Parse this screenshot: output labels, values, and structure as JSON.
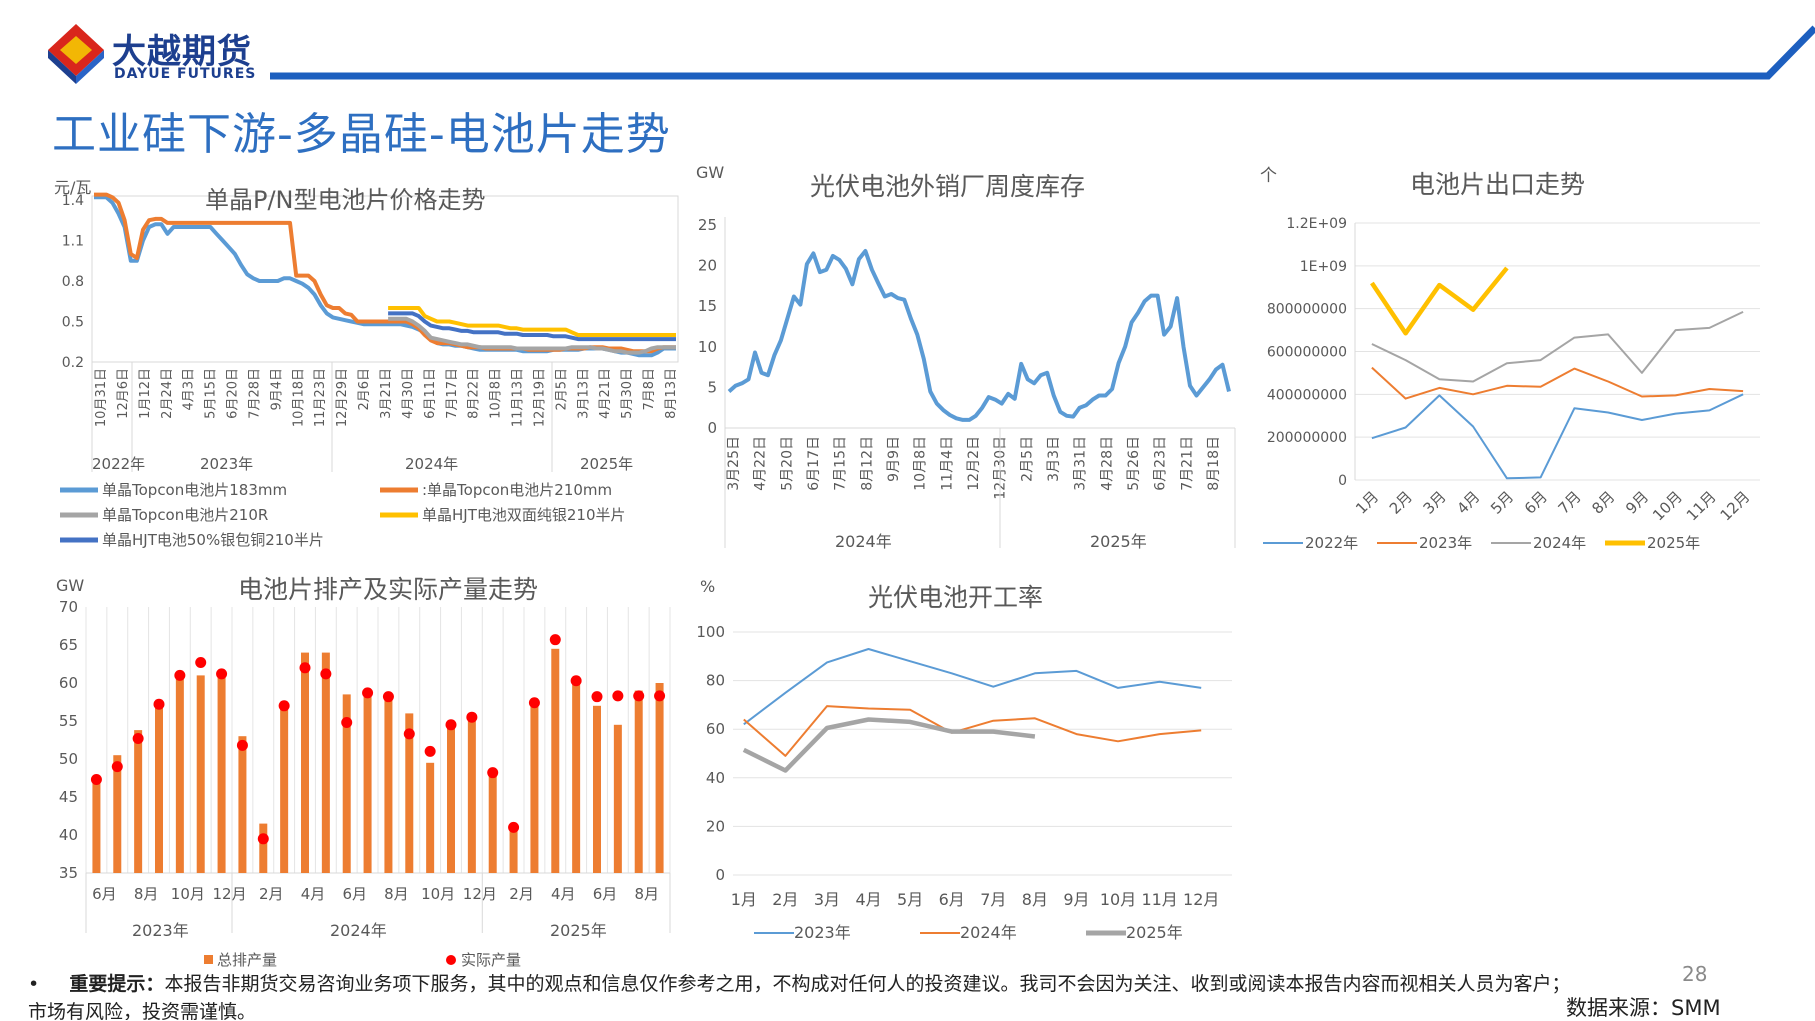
{
  "header": {
    "logo_cn": "大越期货",
    "logo_en": "DAYUE FUTURES",
    "title": "工业硅下游-多晶硅-电池片走势"
  },
  "footer": {
    "disclaimer_label": "重要提示：",
    "disclaimer_text": "本报告非期货交易咨询业务项下服务，其中的观点和信息仅作参考之用，不构成对任何人的投资建议。我司不会因为关注、收到或阅读本报告内容而视相关人员为客户；市场有风险，投资需谨慎。",
    "bullet": "•",
    "page_number": "28",
    "source": "数据来源：SMM"
  },
  "colors": {
    "blue": "#5b9bd5",
    "orange": "#ed7d31",
    "gray": "#a5a5a5",
    "yellow": "#ffc000",
    "navy": "#4472c4",
    "red": "#ff0000",
    "brand": "#1d5fbf"
  },
  "chart_data": [
    {
      "id": "price",
      "type": "line",
      "title": "单晶P/N型电池片价格走势",
      "ylabel": "元/瓦",
      "ylim": [
        0.2,
        1.4
      ],
      "yticks": [
        "0.2",
        "0.5",
        "0.8",
        "1.1",
        "1.4"
      ],
      "x_tick_labels": [
        "10月31日",
        "12月6日",
        "1月12日",
        "2月24日",
        "4月3日",
        "5月15日",
        "6月20日",
        "7月28日",
        "9月4日",
        "10月18日",
        "11月23日",
        "12月29日",
        "2月6日",
        "3月21日",
        "4月30日",
        "6月11日",
        "7月17日",
        "8月22日",
        "10月8日",
        "11月13日",
        "12月19日",
        "2月5日",
        "3月13日",
        "4月21日",
        "5月30日",
        "7月8日",
        "8月13日"
      ],
      "year_labels": [
        "2022年",
        "2023年",
        "2024年",
        "2025年"
      ],
      "legend_position": "bottom",
      "series": [
        {
          "name": "单晶Topcon电池片183mm",
          "color": "#5b9bd5",
          "values": [
            1.42,
            1.42,
            1.42,
            1.38,
            1.3,
            1.2,
            0.95,
            0.95,
            1.1,
            1.2,
            1.22,
            1.22,
            1.15,
            1.2,
            1.2,
            1.2,
            1.2,
            1.2,
            1.2,
            1.2,
            1.15,
            1.1,
            1.05,
            1.0,
            0.92,
            0.85,
            0.82,
            0.8,
            0.8,
            0.8,
            0.8,
            0.82,
            0.82,
            0.8,
            0.78,
            0.75,
            0.7,
            0.62,
            0.56,
            0.53,
            0.52,
            0.51,
            0.5,
            0.49,
            0.48,
            0.48,
            0.48,
            0.48,
            0.48,
            0.48,
            0.48,
            0.47,
            0.46,
            0.44,
            0.42,
            0.38,
            0.34,
            0.33,
            0.33,
            0.32,
            0.32,
            0.31,
            0.3,
            0.29,
            0.29,
            0.29,
            0.29,
            0.29,
            0.29,
            0.29,
            0.28,
            0.28,
            0.28,
            0.28,
            0.28,
            0.29,
            0.29,
            0.29,
            0.29,
            0.29,
            0.3,
            0.3,
            0.3,
            0.3,
            0.29,
            0.28,
            0.27,
            0.27,
            0.26,
            0.25,
            0.25,
            0.25,
            0.27,
            0.3,
            0.3,
            0.3
          ]
        },
        {
          "name": ":单晶Topcon电池片210mm",
          "color": "#ed7d31",
          "values": [
            1.44,
            1.44,
            1.44,
            1.42,
            1.38,
            1.25,
            1.0,
            0.97,
            1.18,
            1.25,
            1.26,
            1.26,
            1.23,
            1.23,
            1.23,
            1.23,
            1.23,
            1.23,
            1.23,
            1.23,
            1.23,
            1.23,
            1.23,
            1.23,
            1.23,
            1.23,
            1.23,
            1.23,
            1.23,
            1.23,
            1.23,
            1.23,
            1.23,
            0.84,
            0.84,
            0.84,
            0.8,
            0.7,
            0.62,
            0.6,
            0.6,
            0.56,
            0.55,
            0.5,
            0.5,
            0.5,
            0.5,
            0.5,
            0.5,
            0.5,
            0.5,
            0.5,
            0.48,
            0.45,
            0.4,
            0.36,
            0.34,
            0.34,
            0.34,
            0.33,
            0.32,
            0.31,
            0.31,
            0.31,
            0.3,
            0.3,
            0.3,
            0.3,
            0.3,
            0.3,
            0.3,
            0.29,
            0.29,
            0.29,
            0.29,
            0.29,
            0.29,
            0.3,
            0.3,
            0.3,
            0.3,
            0.31,
            0.31,
            0.31,
            0.3,
            0.3,
            0.3,
            0.29,
            0.28,
            0.28,
            0.28,
            0.28,
            0.3,
            0.31,
            0.31,
            0.31
          ]
        },
        {
          "name": "单晶Topcon电池片210R",
          "color": "#a5a5a5",
          "values": [
            null,
            null,
            null,
            null,
            null,
            null,
            null,
            null,
            null,
            null,
            null,
            null,
            null,
            null,
            null,
            null,
            null,
            null,
            null,
            null,
            null,
            null,
            null,
            null,
            null,
            null,
            null,
            null,
            null,
            null,
            null,
            null,
            null,
            null,
            null,
            null,
            null,
            null,
            null,
            null,
            null,
            null,
            null,
            null,
            null,
            null,
            null,
            null,
            0.52,
            0.52,
            0.52,
            0.52,
            0.5,
            0.47,
            0.43,
            0.38,
            0.37,
            0.36,
            0.35,
            0.34,
            0.33,
            0.33,
            0.32,
            0.31,
            0.31,
            0.31,
            0.31,
            0.31,
            0.31,
            0.3,
            0.3,
            0.3,
            0.3,
            0.3,
            0.3,
            0.3,
            0.3,
            0.3,
            0.31,
            0.31,
            0.31,
            0.31,
            0.3,
            0.3,
            0.29,
            0.28,
            0.28,
            0.27,
            0.27,
            0.27,
            0.28,
            0.3,
            0.31,
            0.31,
            0.31,
            0.31
          ]
        },
        {
          "name": "单晶HJT电池双面纯银210半片",
          "color": "#ffc000",
          "values": [
            null,
            null,
            null,
            null,
            null,
            null,
            null,
            null,
            null,
            null,
            null,
            null,
            null,
            null,
            null,
            null,
            null,
            null,
            null,
            null,
            null,
            null,
            null,
            null,
            null,
            null,
            null,
            null,
            null,
            null,
            null,
            null,
            null,
            null,
            null,
            null,
            null,
            null,
            null,
            null,
            null,
            null,
            null,
            null,
            null,
            null,
            null,
            null,
            0.6,
            0.6,
            0.6,
            0.6,
            0.6,
            0.6,
            0.54,
            0.52,
            0.5,
            0.5,
            0.5,
            0.49,
            0.48,
            0.47,
            0.47,
            0.47,
            0.47,
            0.47,
            0.47,
            0.46,
            0.45,
            0.45,
            0.44,
            0.44,
            0.44,
            0.44,
            0.44,
            0.44,
            0.44,
            0.44,
            0.42,
            0.4,
            0.4,
            0.4,
            0.4,
            0.4,
            0.4,
            0.4,
            0.4,
            0.4,
            0.4,
            0.4,
            0.4,
            0.4,
            0.4,
            0.4,
            0.4,
            0.4
          ]
        },
        {
          "name": "单晶HJT电池50%银包铜210半片",
          "color": "#4472c4",
          "values": [
            null,
            null,
            null,
            null,
            null,
            null,
            null,
            null,
            null,
            null,
            null,
            null,
            null,
            null,
            null,
            null,
            null,
            null,
            null,
            null,
            null,
            null,
            null,
            null,
            null,
            null,
            null,
            null,
            null,
            null,
            null,
            null,
            null,
            null,
            null,
            null,
            null,
            null,
            null,
            null,
            null,
            null,
            null,
            null,
            null,
            null,
            null,
            null,
            0.56,
            0.56,
            0.56,
            0.56,
            0.56,
            0.54,
            0.5,
            0.47,
            0.46,
            0.45,
            0.45,
            0.44,
            0.43,
            0.43,
            0.42,
            0.42,
            0.42,
            0.42,
            0.42,
            0.41,
            0.41,
            0.41,
            0.4,
            0.4,
            0.4,
            0.4,
            0.4,
            0.39,
            0.39,
            0.39,
            0.38,
            0.37,
            0.37,
            0.37,
            0.37,
            0.37,
            0.37,
            0.37,
            0.37,
            0.37,
            0.37,
            0.37,
            0.37,
            0.37,
            0.37,
            0.37,
            0.37,
            0.37
          ]
        }
      ]
    },
    {
      "id": "inventory",
      "type": "line",
      "title": "光伏电池外销厂周度库存",
      "ylabel": "GW",
      "ylim": [
        0,
        25
      ],
      "yticks": [
        "0",
        "5",
        "10",
        "15",
        "20",
        "25"
      ],
      "x_tick_labels": [
        "3月25日",
        "4月22日",
        "5月20日",
        "6月17日",
        "7月15日",
        "8月12日",
        "9月9日",
        "10月8日",
        "11月4日",
        "12月2日",
        "12月30日",
        "2月5日",
        "3月3日",
        "3月31日",
        "4月28日",
        "5月26日",
        "6月23日",
        "7月21日",
        "8月18日"
      ],
      "year_labels": [
        "2024年",
        "2025年"
      ],
      "series": [
        {
          "name": "",
          "color": "#5b9bd5",
          "values": [
            4.5,
            5.2,
            5.5,
            6.0,
            9.3,
            6.8,
            6.5,
            9.0,
            10.8,
            13.5,
            16.2,
            15.2,
            20.2,
            21.5,
            19.2,
            19.5,
            21.2,
            20.7,
            19.6,
            17.7,
            20.8,
            21.8,
            19.5,
            17.8,
            16.2,
            16.5,
            16.0,
            15.8,
            13.5,
            11.5,
            8.5,
            4.5,
            3.0,
            2.2,
            1.6,
            1.2,
            1.0,
            1.0,
            1.5,
            2.5,
            3.8,
            3.5,
            3.0,
            4.2,
            3.6,
            7.9,
            6.0,
            5.5,
            6.5,
            6.8,
            4.0,
            2.0,
            1.5,
            1.4,
            2.5,
            2.8,
            3.5,
            4.0,
            4.0,
            4.8,
            8.0,
            10.0,
            13.0,
            14.2,
            15.6,
            16.3,
            16.3,
            11.5,
            12.5,
            16.0,
            10.0,
            5.2,
            4.0,
            5.0,
            6.0,
            7.2,
            7.8,
            4.5
          ]
        }
      ]
    },
    {
      "id": "export",
      "type": "line",
      "title": "电池片出口走势",
      "ylabel": "个",
      "ylim": [
        0,
        1200000000
      ],
      "yticks": [
        "0",
        "200000000",
        "400000000",
        "600000000",
        "800000000",
        "1E+09",
        "1.2E+09"
      ],
      "categories": [
        "1月",
        "2月",
        "3月",
        "4月",
        "5月",
        "6月",
        "7月",
        "8月",
        "9月",
        "10月",
        "11月",
        "12月"
      ],
      "legend_position": "bottom",
      "series": [
        {
          "name": "2022年",
          "color": "#5b9bd5",
          "values": [
            195000000,
            245000000,
            395000000,
            250000000,
            8000000,
            12000000,
            335000000,
            315000000,
            280000000,
            310000000,
            325000000,
            400000000
          ]
        },
        {
          "name": "2023年",
          "color": "#ed7d31",
          "values": [
            525000000,
            380000000,
            430000000,
            400000000,
            440000000,
            435000000,
            520000000,
            460000000,
            390000000,
            395000000,
            425000000,
            415000000
          ]
        },
        {
          "name": "2024年",
          "color": "#a5a5a5",
          "values": [
            635000000,
            560000000,
            470000000,
            460000000,
            545000000,
            560000000,
            665000000,
            680000000,
            500000000,
            700000000,
            710000000,
            785000000
          ]
        },
        {
          "name": "2025年",
          "color": "#ffc000",
          "values": [
            920000000,
            685000000,
            910000000,
            795000000,
            990000000,
            null,
            null,
            null,
            null,
            null,
            null,
            null
          ]
        }
      ]
    },
    {
      "id": "production",
      "type": "bar",
      "title": "电池片排产及实际产量走势",
      "ylabel": "GW",
      "ylim": [
        35,
        70
      ],
      "yticks": [
        "35",
        "40",
        "45",
        "50",
        "55",
        "60",
        "65",
        "70"
      ],
      "month_labels": [
        "6月",
        "8月",
        "10月",
        "12月",
        "2月",
        "4月",
        "6月",
        "8月",
        "10月",
        "12月",
        "2月",
        "4月",
        "6月",
        "8月"
      ],
      "year_labels": [
        "2023年",
        "2024年",
        "2025年"
      ],
      "legend_position": "bottom",
      "series": [
        {
          "name": "总排产量",
          "color": "#ed7d31",
          "values": [
            47.5,
            50.5,
            53.8,
            57.5,
            61.0,
            61.0,
            61.0,
            53.0,
            41.5,
            57.0,
            64.0,
            64.0,
            58.5,
            58.5,
            58.0,
            56.0,
            49.5,
            54.5,
            55.0,
            48.0,
            41.0,
            57.0,
            64.5,
            60.0,
            57.0,
            54.5,
            59.0,
            60.0
          ]
        },
        {
          "name": "实际产量",
          "color": "#ff0000",
          "values": [
            47.3,
            49.0,
            52.7,
            57.2,
            61.0,
            62.7,
            61.2,
            51.8,
            39.5,
            57.0,
            62.0,
            61.2,
            54.8,
            58.7,
            58.2,
            53.3,
            51.0,
            54.5,
            55.5,
            48.2,
            41.0,
            57.4,
            65.7,
            60.3,
            58.2,
            58.3,
            58.3,
            58.3
          ]
        }
      ]
    },
    {
      "id": "utilization",
      "type": "line",
      "title": "光伏电池开工率",
      "ylabel": "%",
      "ylim": [
        0,
        100
      ],
      "yticks": [
        "0",
        "20",
        "40",
        "60",
        "80",
        "100"
      ],
      "categories": [
        "1月",
        "2月",
        "3月",
        "4月",
        "5月",
        "6月",
        "7月",
        "8月",
        "9月",
        "10月",
        "11月",
        "12月"
      ],
      "legend_position": "bottom",
      "series": [
        {
          "name": "2023年",
          "color": "#5b9bd5",
          "values": [
            62,
            75,
            87.5,
            93,
            88,
            83,
            77.5,
            83,
            84,
            77,
            79.5,
            77
          ]
        },
        {
          "name": "2024年",
          "color": "#ed7d31",
          "values": [
            64,
            49,
            69.5,
            68.5,
            68,
            58.5,
            63.5,
            64.5,
            58,
            55,
            58,
            59.5
          ]
        },
        {
          "name": "2025年",
          "color": "#a5a5a5",
          "values": [
            51.5,
            43,
            60.5,
            64,
            63,
            59,
            59,
            57,
            null,
            null,
            null,
            null
          ]
        }
      ]
    }
  ]
}
